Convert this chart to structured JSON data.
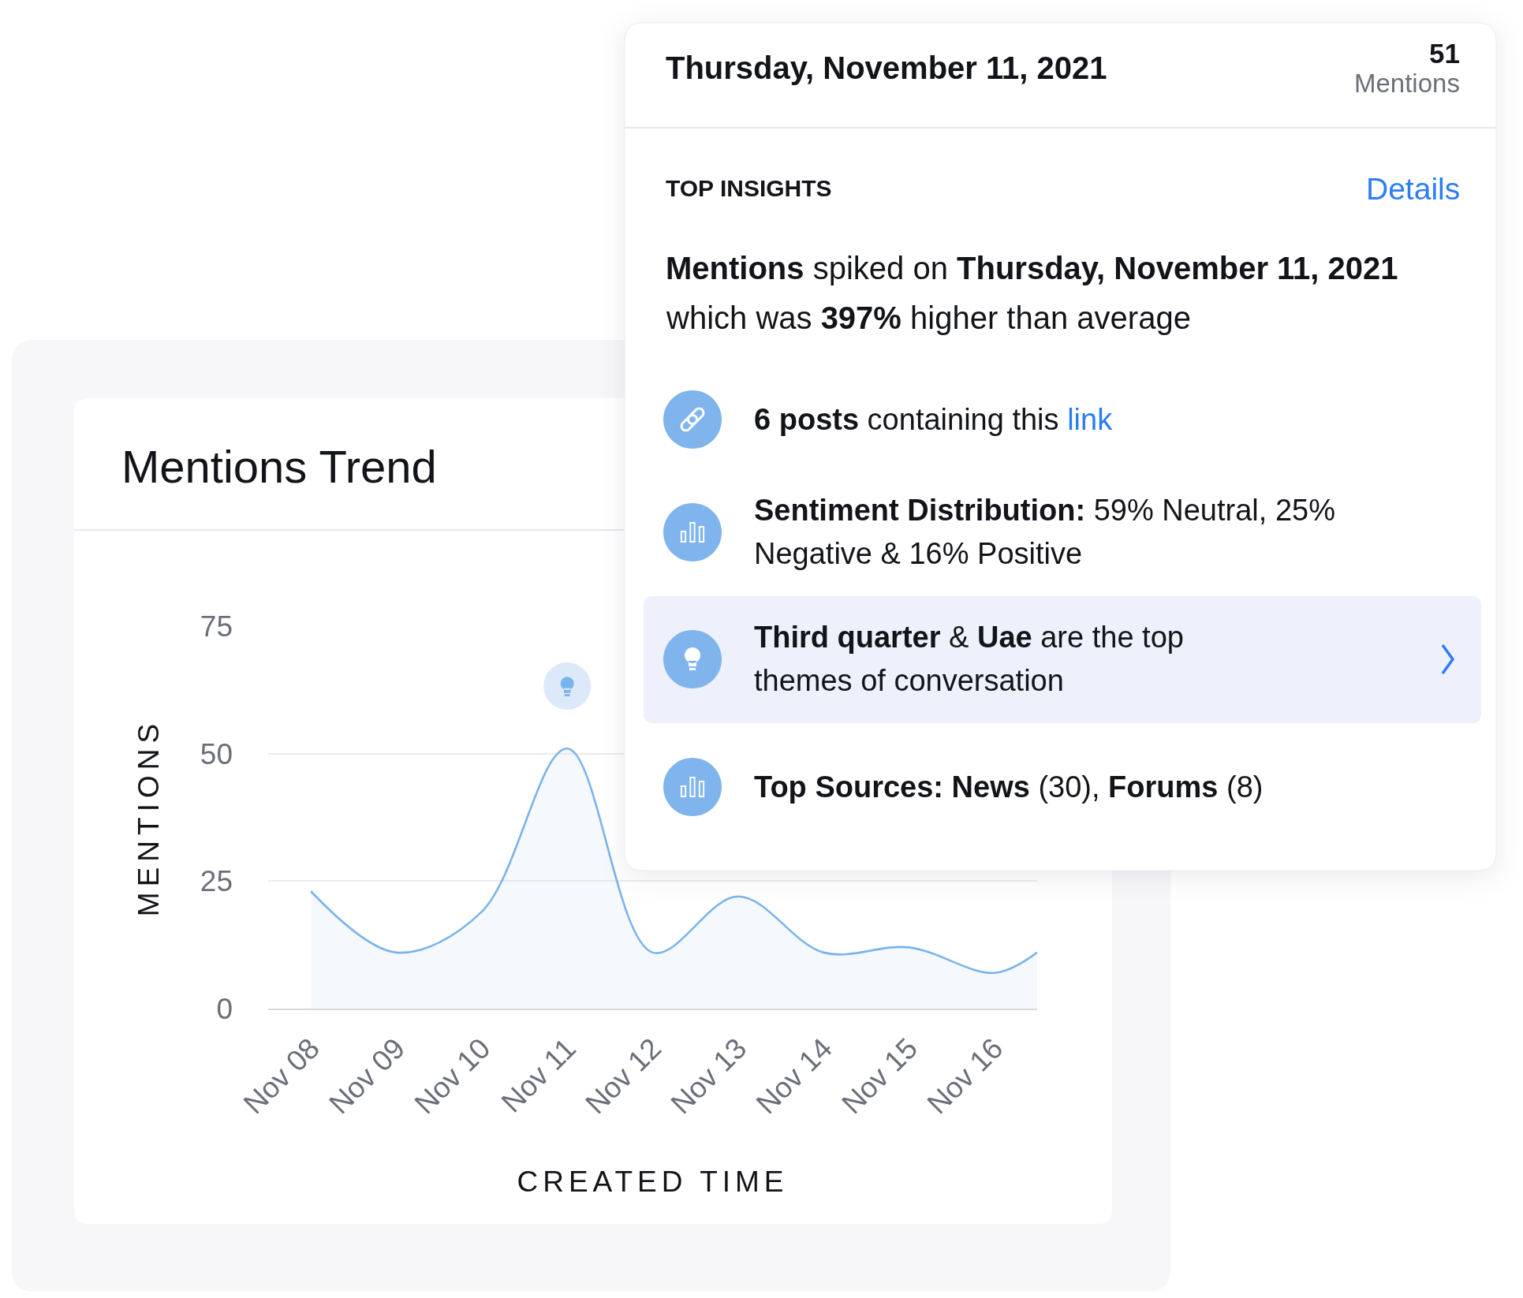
{
  "chart_data": [
    {
      "type": "area",
      "title": "Mentions Trend",
      "xlabel": "CREATED TIME",
      "ylabel": "MENTIONS",
      "x": [
        "2021-11-08",
        "2021-11-09",
        "2021-11-10",
        "2021-11-11",
        "2021-11-12",
        "2021-11-13",
        "2021-11-14",
        "2021-11-15",
        "2021-11-16",
        "2021-11-16T12:00"
      ],
      "series": [
        {
          "color": "#7ab4ec",
          "values": [
            23,
            11,
            19,
            51,
            11,
            22,
            11,
            12,
            7,
            11
          ]
        }
      ],
      "xlim": [
        "2021-11-07T12:00",
        "2021-11-16T12:00"
      ],
      "xticks": [
        {
          "value": "2021-11-08",
          "label": "Nov 08"
        },
        {
          "value": "2021-11-09",
          "label": "Nov 09"
        },
        {
          "value": "2021-11-10",
          "label": "Nov 10"
        },
        {
          "value": "2021-11-11",
          "label": "Nov 11"
        },
        {
          "value": "2021-11-12",
          "label": "Nov 12"
        },
        {
          "value": "2021-11-13",
          "label": "Nov 13"
        },
        {
          "value": "2021-11-14",
          "label": "Nov 14"
        },
        {
          "value": "2021-11-15",
          "label": "Nov 15"
        },
        {
          "value": "2021-11-16",
          "label": "Nov 16"
        }
      ],
      "ylim": [
        0,
        75
      ],
      "yticks": [
        0,
        25,
        50,
        75
      ],
      "grid": "y"
    },
    {
      "type": "other",
      "title": "Thursday, November 11, 2021",
      "annotations": [
        "51",
        "Mentions",
        "TOP INSIGHTS",
        "Details",
        "Mentions spiked on Thursday, November 11, 2021",
        "which was 397% higher than average",
        "6 posts containing this link",
        "Sentiment Distribution: 59% Neutral, 25%",
        "Negative & 16% Positive",
        "Third quarter & Uae are the top",
        "themes of conversation",
        "Top Sources: News (30), Forums (8)"
      ]
    }
  ]
}
